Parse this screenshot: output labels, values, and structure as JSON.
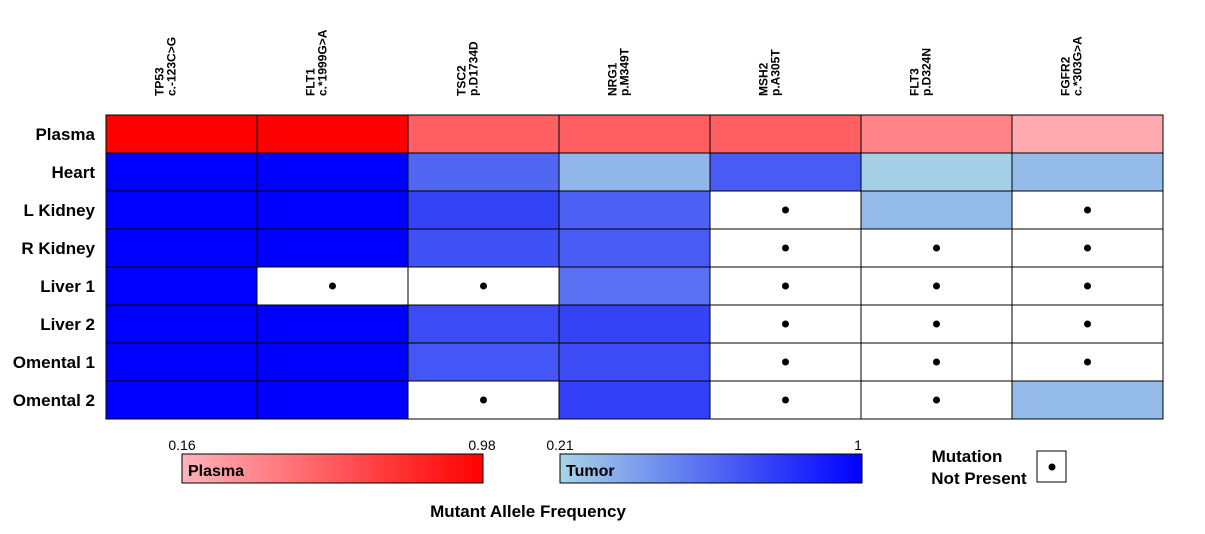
{
  "chart_data": {
    "type": "heatmap",
    "columns": [
      {
        "gene": "TP53",
        "variant": "c.-123C>G"
      },
      {
        "gene": "FLT1",
        "variant": "c.*1999G>A"
      },
      {
        "gene": "TSC2",
        "variant": "p.D1734D"
      },
      {
        "gene": "NRG1",
        "variant": "p.M349T"
      },
      {
        "gene": "MSH2",
        "variant": "p.A305T"
      },
      {
        "gene": "FLT3",
        "variant": "p.D324N"
      },
      {
        "gene": "FGFR2",
        "variant": "c.*303G>A"
      }
    ],
    "rows": [
      "Plasma",
      "Heart",
      "L Kidney",
      "R Kidney",
      "Liver 1",
      "Liver 2",
      "Omental 1",
      "Omental 2"
    ],
    "values": [
      [
        0.98,
        0.98,
        0.55,
        0.55,
        0.55,
        0.38,
        0.2
      ],
      [
        1.0,
        1.0,
        0.62,
        0.32,
        0.66,
        0.23,
        0.3
      ],
      [
        1.0,
        1.0,
        0.75,
        0.64,
        null,
        0.3,
        null
      ],
      [
        1.0,
        1.0,
        0.7,
        0.66,
        null,
        null,
        null
      ],
      [
        1.0,
        null,
        null,
        0.58,
        null,
        null,
        null
      ],
      [
        1.0,
        1.0,
        0.72,
        0.75,
        null,
        null,
        null
      ],
      [
        1.0,
        1.0,
        0.68,
        0.72,
        null,
        null,
        null
      ],
      [
        1.0,
        1.0,
        null,
        0.76,
        null,
        null,
        0.3
      ]
    ],
    "colorbars": [
      {
        "name": "Plasma",
        "min": 0.16,
        "max": 0.98,
        "min_label": "0.16",
        "max_label": "0.98",
        "color_low": "#ffb3ba",
        "color_high": "#ff0000"
      },
      {
        "name": "Tumor",
        "min": 0.21,
        "max": 1,
        "min_label": "0.21",
        "max_label": "1",
        "color_low": "#a8d4e6",
        "color_high": "#0000ff"
      }
    ],
    "missing_legend": {
      "line1": "Mutation",
      "line2": "Not Present"
    },
    "xlabel": "Mutant Allele Frequency"
  }
}
